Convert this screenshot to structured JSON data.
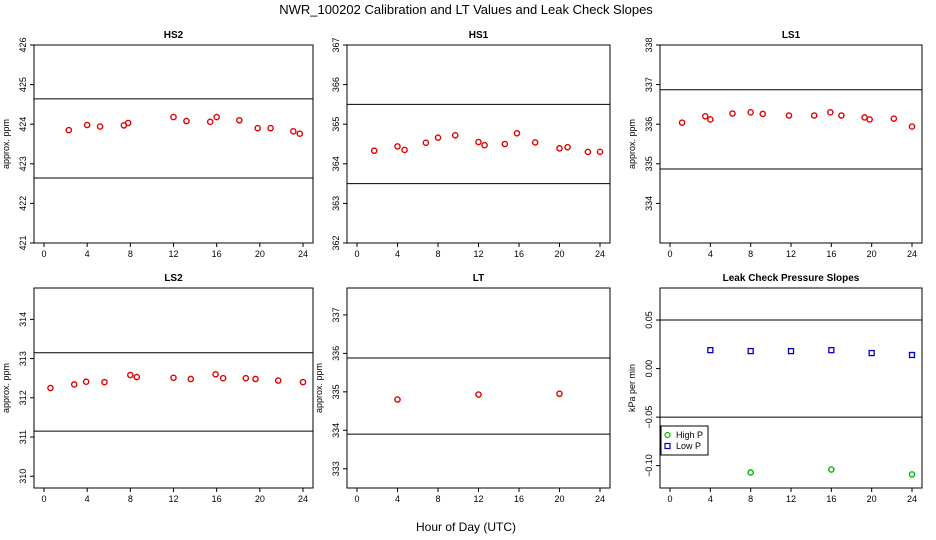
{
  "page": {
    "title": "NWR_100202  Calibration and LT Values and Leak Check Slopes",
    "xlabel": "Hour of Day (UTC)"
  },
  "chart_data": [
    {
      "type": "scatter",
      "title": "HS2",
      "ylabel": "approx. ppm",
      "xlim": [
        0,
        24
      ],
      "xticks": [
        0,
        4,
        8,
        12,
        16,
        20,
        24
      ],
      "ylim": [
        421,
        426
      ],
      "yticks": [
        421,
        422,
        423,
        424,
        425,
        426
      ],
      "hlines": [
        422.64,
        424.64
      ],
      "series": [
        {
          "color": "#e00000",
          "marker": "circle",
          "points": [
            [
              2.3,
              423.85
            ],
            [
              4.0,
              423.98
            ],
            [
              5.2,
              423.94
            ],
            [
              7.4,
              423.97
            ],
            [
              7.8,
              424.03
            ],
            [
              12.0,
              424.18
            ],
            [
              13.2,
              424.08
            ],
            [
              15.4,
              424.06
            ],
            [
              16.0,
              424.18
            ],
            [
              18.1,
              424.1
            ],
            [
              19.8,
              423.9
            ],
            [
              21.0,
              423.9
            ],
            [
              23.1,
              423.82
            ],
            [
              23.7,
              423.76
            ]
          ]
        }
      ]
    },
    {
      "type": "scatter",
      "title": "HS1",
      "ylabel": "",
      "xlim": [
        0,
        24
      ],
      "xticks": [
        0,
        4,
        8,
        12,
        16,
        20,
        24
      ],
      "ylim": [
        362,
        367
      ],
      "yticks": [
        362,
        363,
        364,
        365,
        366,
        367
      ],
      "hlines": [
        363.5,
        365.5
      ],
      "series": [
        {
          "color": "#e00000",
          "marker": "circle",
          "points": [
            [
              1.7,
              364.33
            ],
            [
              4.0,
              364.44
            ],
            [
              4.7,
              364.35
            ],
            [
              6.8,
              364.53
            ],
            [
              8.0,
              364.66
            ],
            [
              9.7,
              364.72
            ],
            [
              12.0,
              364.55
            ],
            [
              12.6,
              364.47
            ],
            [
              14.6,
              364.5
            ],
            [
              15.8,
              364.77
            ],
            [
              17.6,
              364.54
            ],
            [
              20.0,
              364.39
            ],
            [
              20.8,
              364.42
            ],
            [
              22.8,
              364.3
            ],
            [
              24.0,
              364.3
            ]
          ]
        }
      ]
    },
    {
      "type": "scatter",
      "title": "LS1",
      "ylabel": "approx. ppm",
      "xlim": [
        0,
        24
      ],
      "xticks": [
        0,
        4,
        8,
        12,
        16,
        20,
        24
      ],
      "ylim": [
        333,
        338
      ],
      "yticks": [
        334,
        335,
        336,
        337,
        338
      ],
      "hlines": [
        334.87,
        336.87
      ],
      "series": [
        {
          "color": "#e00000",
          "marker": "circle",
          "points": [
            [
              1.2,
              336.04
            ],
            [
              3.5,
              336.2
            ],
            [
              4.0,
              336.12
            ],
            [
              6.2,
              336.27
            ],
            [
              8.0,
              336.3
            ],
            [
              9.2,
              336.26
            ],
            [
              11.8,
              336.22
            ],
            [
              14.3,
              336.22
            ],
            [
              15.9,
              336.3
            ],
            [
              17.0,
              336.22
            ],
            [
              19.3,
              336.17
            ],
            [
              19.8,
              336.12
            ],
            [
              22.2,
              336.14
            ],
            [
              24.0,
              335.94
            ]
          ]
        }
      ]
    },
    {
      "type": "scatter",
      "title": "LS2",
      "ylabel": "approx. ppm",
      "xlim": [
        0,
        24
      ],
      "xticks": [
        0,
        4,
        8,
        12,
        16,
        20,
        24
      ],
      "ylim": [
        309.7,
        314.8
      ],
      "yticks": [
        310,
        311,
        312,
        313,
        314
      ],
      "hlines": [
        311.15,
        313.15
      ],
      "series": [
        {
          "color": "#e00000",
          "marker": "circle",
          "points": [
            [
              0.6,
              312.25
            ],
            [
              2.8,
              312.34
            ],
            [
              3.9,
              312.41
            ],
            [
              5.6,
              312.4
            ],
            [
              8.0,
              312.58
            ],
            [
              8.6,
              312.53
            ],
            [
              12.0,
              312.51
            ],
            [
              13.6,
              312.48
            ],
            [
              15.9,
              312.6
            ],
            [
              16.6,
              312.5
            ],
            [
              18.7,
              312.5
            ],
            [
              19.6,
              312.48
            ],
            [
              21.7,
              312.44
            ],
            [
              24.0,
              312.4
            ]
          ]
        }
      ]
    },
    {
      "type": "scatter",
      "title": "LT",
      "ylabel": "approx. ppm",
      "xlim": [
        0,
        24
      ],
      "xticks": [
        0,
        4,
        8,
        12,
        16,
        20,
        24
      ],
      "ylim": [
        332.5,
        337.7
      ],
      "yticks": [
        333,
        334,
        335,
        336,
        337
      ],
      "hlines": [
        333.9,
        335.88
      ],
      "series": [
        {
          "color": "#e00000",
          "marker": "circle",
          "points": [
            [
              4.0,
              334.8
            ],
            [
              12.0,
              334.93
            ],
            [
              20.0,
              334.95
            ]
          ]
        }
      ]
    },
    {
      "type": "scatter",
      "title": "Leak Check Pressure Slopes",
      "ylabel": "kPa per min",
      "xlim": [
        0,
        24
      ],
      "xticks": [
        0,
        4,
        8,
        12,
        16,
        20,
        24
      ],
      "ylim": [
        -0.123,
        0.083
      ],
      "yticks": [
        -0.1,
        -0.05,
        0.0,
        0.05
      ],
      "ytick_labels": [
        "−0.10",
        "−0.05",
        "0.00",
        "0.05"
      ],
      "hlines": [
        -0.05,
        0.05
      ],
      "legend": "bottom-left",
      "series": [
        {
          "name": "High P",
          "color": "#00bb00",
          "marker": "circle",
          "points": [
            [
              8.0,
              -0.107
            ],
            [
              16.0,
              -0.104
            ],
            [
              24.0,
              -0.109
            ]
          ]
        },
        {
          "name": "Low P",
          "color": "#0000cc",
          "marker": "square",
          "points": [
            [
              4.0,
              0.019
            ],
            [
              8.0,
              0.018
            ],
            [
              12.0,
              0.018
            ],
            [
              16.0,
              0.019
            ],
            [
              20.0,
              0.016
            ],
            [
              24.0,
              0.014
            ]
          ]
        }
      ]
    }
  ]
}
